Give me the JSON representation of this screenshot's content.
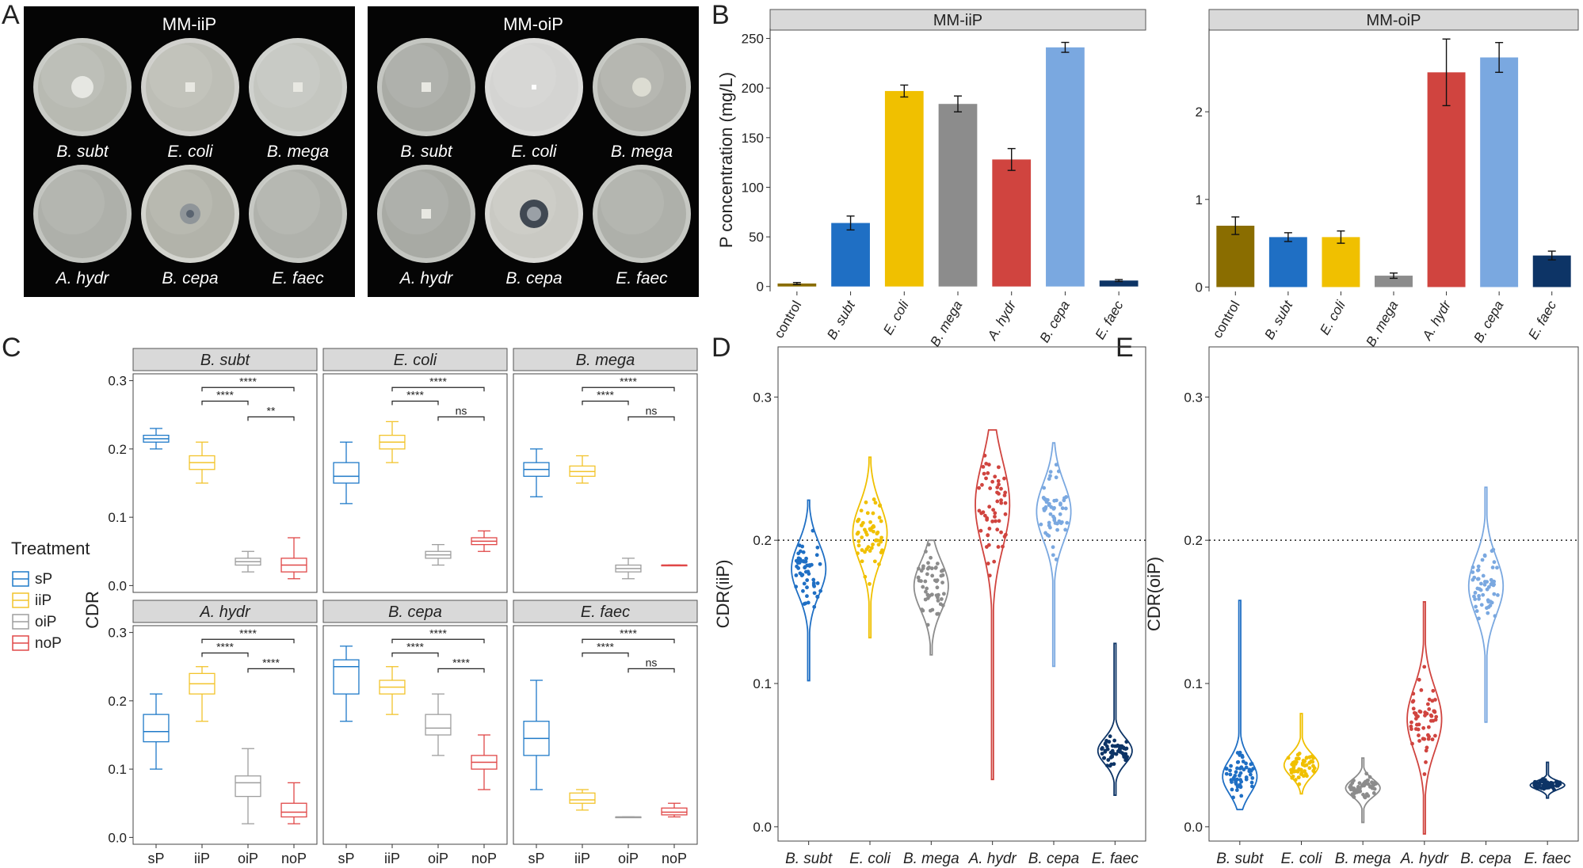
{
  "panel_letters": {
    "a": "A",
    "b": "B",
    "c": "C",
    "d": "D",
    "e": "E"
  },
  "colors": {
    "control": "#8a6d00",
    "bsubt": "#1f6fc4",
    "ecoli": "#f0c000",
    "bmega": "#8c8c8c",
    "ahydr": "#d0443f",
    "bcepa": "#7aa8e0",
    "efaec": "#0d3466",
    "sP": "#1f7ac8",
    "iiP": "#f2c42c",
    "oiP": "#9e9e9e",
    "noP": "#e04848"
  },
  "panel_a": {
    "groups": [
      {
        "title": "MM-iiP",
        "species": [
          "B. subt",
          "E. coli",
          "B. mega",
          "A. hydr",
          "B. cepa",
          "E. faec"
        ]
      },
      {
        "title": "MM-oiP",
        "species": [
          "B. subt",
          "E. coli",
          "B. mega",
          "A. hydr",
          "B. cepa",
          "E. faec"
        ]
      }
    ]
  },
  "chart_data": [
    {
      "id": "B-left",
      "type": "bar",
      "title": "MM-iiP",
      "ylabel": "P concentration (mg/L)",
      "xlabel": "",
      "categories": [
        "control",
        "B. subt",
        "E. coli",
        "B. mega",
        "A. hydr",
        "B. cepa",
        "E. faec"
      ],
      "values": [
        3,
        64,
        197,
        184,
        128,
        241,
        6
      ],
      "errors": [
        1,
        7,
        6,
        8,
        11,
        5,
        1
      ],
      "ylim": [
        -5,
        260
      ],
      "yticks": [
        "0",
        "50",
        "100",
        "150",
        "200",
        "250"
      ]
    },
    {
      "id": "B-right",
      "type": "bar",
      "title": "MM-oiP",
      "ylabel": "",
      "xlabel": "",
      "categories": [
        "control",
        "B. subt",
        "E. coli",
        "B. mega",
        "A. hydr",
        "B. cepa",
        "E. faec"
      ],
      "values": [
        0.7,
        0.57,
        0.57,
        0.13,
        2.45,
        2.62,
        0.36
      ],
      "errors": [
        0.1,
        0.05,
        0.07,
        0.03,
        0.38,
        0.17,
        0.05
      ],
      "ylim": [
        -0.05,
        2.95
      ],
      "yticks": [
        "0",
        "1",
        "2"
      ]
    },
    {
      "id": "C",
      "type": "box",
      "ylabel": "CDR",
      "legend_title": "Treatment",
      "legend": [
        "sP",
        "iiP",
        "oiP",
        "noP"
      ],
      "categories": [
        "sP",
        "iiP",
        "oiP",
        "noP"
      ],
      "ylim": [
        -0.01,
        0.31
      ],
      "yticks": [
        "0.0",
        "0.1",
        "0.2",
        "0.3"
      ],
      "facets": [
        {
          "title": "B. subt",
          "boxes": [
            [
              0.2,
              0.21,
              0.215,
              0.22,
              0.23
            ],
            [
              0.15,
              0.17,
              0.18,
              0.19,
              0.21
            ],
            [
              0.02,
              0.03,
              0.035,
              0.04,
              0.05
            ],
            [
              0.01,
              0.02,
              0.03,
              0.04,
              0.07
            ]
          ],
          "sig": [
            "****",
            "****",
            "**"
          ]
        },
        {
          "title": "E. coli",
          "boxes": [
            [
              0.12,
              0.15,
              0.16,
              0.18,
              0.21
            ],
            [
              0.18,
              0.2,
              0.21,
              0.22,
              0.24
            ],
            [
              0.03,
              0.04,
              0.045,
              0.05,
              0.06
            ],
            [
              0.05,
              0.06,
              0.065,
              0.07,
              0.08
            ]
          ],
          "sig": [
            "****",
            "****",
            "ns"
          ]
        },
        {
          "title": "B. mega",
          "boxes": [
            [
              0.13,
              0.16,
              0.17,
              0.18,
              0.2
            ],
            [
              0.15,
              0.16,
              0.167,
              0.175,
              0.19
            ],
            [
              0.01,
              0.02,
              0.025,
              0.03,
              0.04
            ],
            [
              0.03,
              0.03,
              0.03,
              0.03,
              0.03
            ]
          ],
          "sig": [
            "****",
            "****",
            "ns"
          ]
        },
        {
          "title": "A. hydr",
          "boxes": [
            [
              0.1,
              0.14,
              0.155,
              0.18,
              0.21
            ],
            [
              0.17,
              0.21,
              0.225,
              0.24,
              0.25
            ],
            [
              0.02,
              0.06,
              0.08,
              0.09,
              0.13
            ],
            [
              0.02,
              0.03,
              0.037,
              0.05,
              0.08
            ]
          ],
          "sig": [
            "****",
            "****",
            "****"
          ]
        },
        {
          "title": "B. cepa",
          "boxes": [
            [
              0.17,
              0.21,
              0.25,
              0.26,
              0.28
            ],
            [
              0.18,
              0.21,
              0.22,
              0.23,
              0.25
            ],
            [
              0.12,
              0.15,
              0.16,
              0.18,
              0.21
            ],
            [
              0.07,
              0.1,
              0.11,
              0.12,
              0.15
            ]
          ],
          "sig": [
            "****",
            "****",
            "****"
          ]
        },
        {
          "title": "E. faec",
          "boxes": [
            [
              0.07,
              0.12,
              0.145,
              0.17,
              0.23
            ],
            [
              0.04,
              0.05,
              0.055,
              0.065,
              0.07
            ],
            [
              0.03,
              0.03,
              0.03,
              0.03,
              0.03
            ],
            [
              0.03,
              0.033,
              0.037,
              0.043,
              0.05
            ]
          ],
          "sig": [
            "****",
            "****",
            "ns"
          ]
        }
      ]
    },
    {
      "id": "D",
      "type": "violin",
      "ylabel": "CDR(iiP)",
      "categories": [
        "B. subt",
        "E. coli",
        "B. mega",
        "A. hydr",
        "B. cepa",
        "E. faec"
      ],
      "ylim": [
        -0.01,
        0.335
      ],
      "yticks": [
        "0.0",
        "0.1",
        "0.2",
        "0.3"
      ],
      "reference_line": 0.2,
      "groups": [
        {
          "min": 0.102,
          "max": 0.228,
          "center": 0.18,
          "spread": 0.018
        },
        {
          "min": 0.132,
          "max": 0.258,
          "center": 0.205,
          "spread": 0.02
        },
        {
          "min": 0.12,
          "max": 0.2,
          "center": 0.168,
          "spread": 0.017
        },
        {
          "min": 0.033,
          "max": 0.277,
          "center": 0.225,
          "spread": 0.03
        },
        {
          "min": 0.112,
          "max": 0.268,
          "center": 0.22,
          "spread": 0.02
        },
        {
          "min": 0.022,
          "max": 0.128,
          "center": 0.053,
          "spread": 0.009
        }
      ]
    },
    {
      "id": "E",
      "type": "violin",
      "ylabel": "CDR(oiP)",
      "categories": [
        "B. subt",
        "E. coli",
        "B. mega",
        "A. hydr",
        "B. cepa",
        "E. faec"
      ],
      "ylim": [
        -0.01,
        0.335
      ],
      "yticks": [
        "0.0",
        "0.1",
        "0.2",
        "0.3"
      ],
      "reference_line": 0.2,
      "groups": [
        {
          "min": 0.012,
          "max": 0.158,
          "center": 0.035,
          "spread": 0.012
        },
        {
          "min": 0.023,
          "max": 0.079,
          "center": 0.043,
          "spread": 0.008
        },
        {
          "min": 0.003,
          "max": 0.048,
          "center": 0.027,
          "spread": 0.006
        },
        {
          "min": -0.005,
          "max": 0.157,
          "center": 0.075,
          "spread": 0.022
        },
        {
          "min": 0.073,
          "max": 0.237,
          "center": 0.168,
          "spread": 0.02
        },
        {
          "min": 0.02,
          "max": 0.045,
          "center": 0.029,
          "spread": 0.003
        }
      ]
    }
  ]
}
